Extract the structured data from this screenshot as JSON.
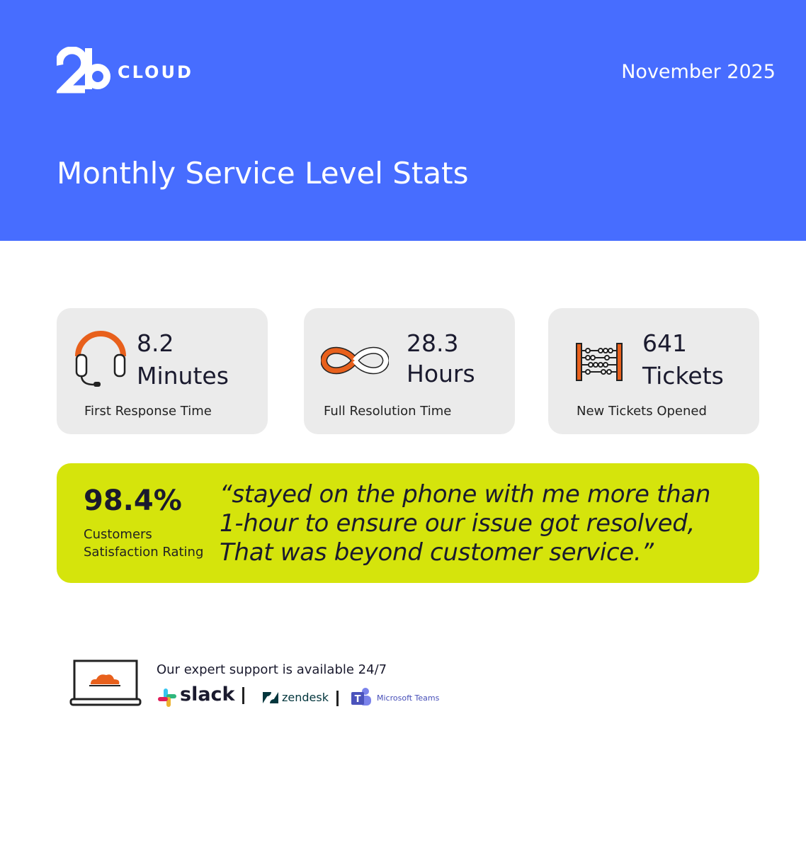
{
  "header": {
    "logo_text": "CLOUD",
    "date": "November 2025",
    "title": "Monthly Service Level Stats"
  },
  "stats": [
    {
      "value": 8.2,
      "unit": "Minutes",
      "label": "First Response Time"
    },
    {
      "value": 28.3,
      "unit": "Hours",
      "label": "Full Resolution Time"
    },
    {
      "value": 641,
      "unit": "Tickets",
      "label": "New Tickets Opened"
    }
  ],
  "satisfaction": {
    "value": "98.4%",
    "label_lines": [
      "Customers",
      "Satisfaction Rating"
    ],
    "quote_lines": [
      "“stayed on the phone with me more than",
      "1-hour to ensure our issue got resolved,",
      "That was beyond customer service.”"
    ]
  },
  "footer": {
    "text": "Our expert support is available 24/7",
    "tools": [
      "slack",
      "zendesk",
      "Microsoft Teams"
    ]
  }
}
